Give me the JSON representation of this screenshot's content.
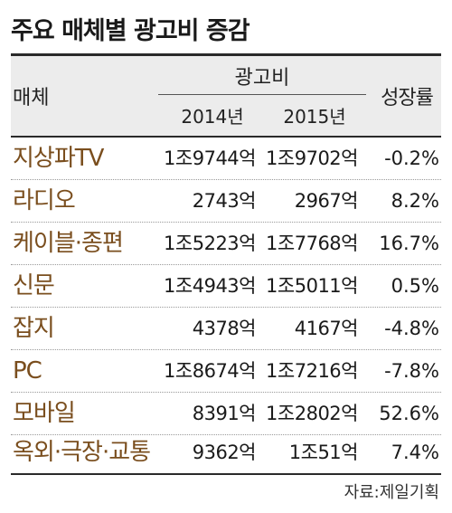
{
  "chart_data": {
    "type": "table",
    "title": "주요 매체별 광고비 증감",
    "header": {
      "media": "매체",
      "ad_spend": "광고비",
      "year1": "2014년",
      "year2": "2015년",
      "growth": "성장률"
    },
    "rows": [
      {
        "media": "지상파TV",
        "y2014": "1조9744억",
        "y2015": "1조9702억",
        "growth": "-0.2%"
      },
      {
        "media": "라디오",
        "y2014": "2743억",
        "y2015": "2967억",
        "growth": "8.2%"
      },
      {
        "media": "케이블·종편",
        "y2014": "1조5223억",
        "y2015": "1조7768억",
        "growth": "16.7%"
      },
      {
        "media": "신문",
        "y2014": "1조4943억",
        "y2015": "1조5011억",
        "growth": "0.5%"
      },
      {
        "media": "잡지",
        "y2014": "4378억",
        "y2015": "4167억",
        "growth": "-4.8%"
      },
      {
        "media": "PC",
        "y2014": "1조8674억",
        "y2015": "1조7216억",
        "growth": "-7.8%"
      },
      {
        "media": "모바일",
        "y2014": "8391억",
        "y2015": "1조2802억",
        "growth": "52.6%"
      },
      {
        "media": "옥외·극장·교통",
        "y2014": "9362억",
        "y2015": "1조51억",
        "growth": "7.4%"
      }
    ],
    "source": "자료:제일기획"
  },
  "colors": {
    "media_label": "#7a4e1e",
    "header_bg": "#ececec",
    "rule": "#2a2a2a"
  }
}
